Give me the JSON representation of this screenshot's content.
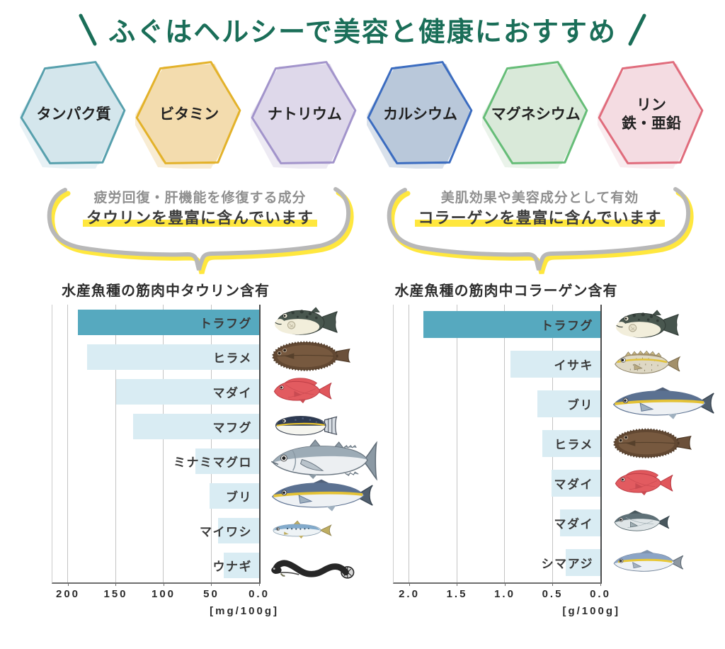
{
  "title": {
    "text": "ふぐはヘルシーで美容と健康におすすめ",
    "color": "#1a6e58"
  },
  "nutrient_hexagons": [
    {
      "label": "タンパク質",
      "fill": "#d4e6ec",
      "stroke": "#57a0ad"
    },
    {
      "label": "ビタミン",
      "fill": "#f3dcae",
      "stroke": "#e3b22a"
    },
    {
      "label": "ナトリウム",
      "fill": "#ded8ea",
      "stroke": "#a294cb"
    },
    {
      "label": "カルシウム",
      "fill": "#b9c8da",
      "stroke": "#3b6cc0"
    },
    {
      "label": "マグネシウム",
      "fill": "#d9e9d9",
      "stroke": "#66bd78"
    },
    {
      "label": "リン\n鉄・亜鉛",
      "fill": "#f4dce2",
      "stroke": "#e06c7c"
    }
  ],
  "callouts": [
    {
      "sub": "疲労回復・肝機能を修復する成分",
      "main": "タウリンを豊富に含んでいます",
      "highlight_color": "#ffe73e"
    },
    {
      "sub": "美肌効果や美容成分として有効",
      "main": "コラーゲンを豊富に含んでいます",
      "highlight_color": "#ffe73e"
    }
  ],
  "chart_data": [
    {
      "type": "bar",
      "orientation": "horizontal-right-to-left",
      "title": "水産魚種の筋肉中タウリン含有",
      "categories": [
        "トラフグ",
        "ヒラメ",
        "マダイ",
        "マフグ",
        "ミナミマグロ",
        "ブリ",
        "マイワシ",
        "ウナギ"
      ],
      "values": [
        190,
        180,
        150,
        132,
        67,
        52,
        43,
        37
      ],
      "fish_icons": [
        "torafugu",
        "hirame",
        "madai",
        "mafugu",
        "minamimaguro",
        "buri",
        "maiwashi",
        "unagi"
      ],
      "xlabel": "",
      "ylabel": "",
      "unit_label": "[mg/100g]",
      "xlim": [
        0,
        200
      ],
      "tick_values": [
        200,
        150,
        100,
        50,
        0
      ],
      "tick_labels": [
        "200",
        "150",
        "100",
        "50",
        "0.0"
      ],
      "grid": true,
      "bar_color": "#d9ecf3",
      "bar_color_highlight": "#56a9bf",
      "highlight_index": 0
    },
    {
      "type": "bar",
      "orientation": "horizontal-right-to-left",
      "title": "水産魚種の筋肉中コラーゲン含有",
      "categories": [
        "トラフグ",
        "イサキ",
        "ブリ",
        "ヒラメ",
        "マダイ",
        "マダイ",
        "シマアジ"
      ],
      "values": [
        1.85,
        0.94,
        0.66,
        0.61,
        0.51,
        0.42,
        0.36
      ],
      "fish_icons": [
        "torafugu",
        "isaki",
        "buri",
        "hirame",
        "madai",
        "madai-gray",
        "shimaaji"
      ],
      "xlabel": "",
      "ylabel": "",
      "unit_label": "[g/100g]",
      "xlim": [
        0,
        2.0
      ],
      "tick_values": [
        2.0,
        1.5,
        1.0,
        0.5,
        0
      ],
      "tick_labels": [
        "2.0",
        "1.5",
        "1.0",
        "0.5",
        "0.0"
      ],
      "grid": true,
      "bar_color": "#d9ecf3",
      "bar_color_highlight": "#56a9bf",
      "highlight_index": 0
    }
  ]
}
